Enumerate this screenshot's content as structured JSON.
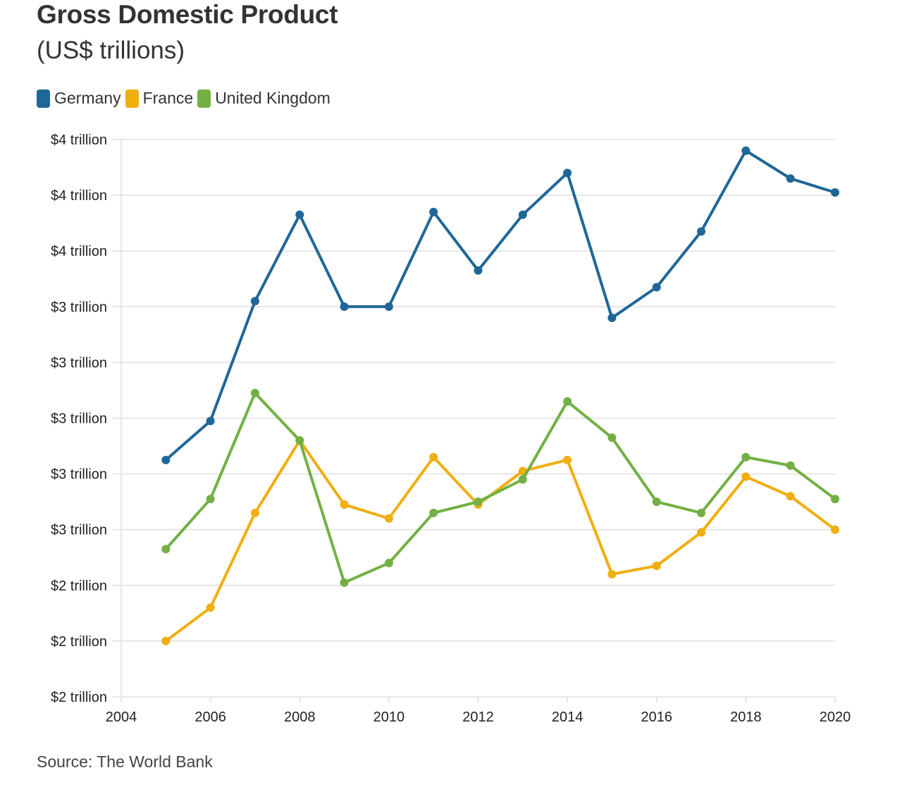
{
  "header": {
    "title": "Gross Domestic Product",
    "subtitle": "(US$ trillions)"
  },
  "legend": [
    {
      "label": "Germany",
      "color": "#1f6797"
    },
    {
      "label": "France",
      "color": "#f0ae0f"
    },
    {
      "label": "United Kingdom",
      "color": "#72b043"
    }
  ],
  "footer": {
    "source": "Source: The World Bank"
  },
  "chart_data": {
    "type": "line",
    "title": "Gross Domestic Product",
    "subtitle": "(US$ trillions)",
    "xlabel": "",
    "ylabel": "",
    "x": [
      2005,
      2006,
      2007,
      2008,
      2009,
      2010,
      2011,
      2012,
      2013,
      2014,
      2015,
      2016,
      2017,
      2018,
      2019,
      2020
    ],
    "xlim": [
      2004,
      2020
    ],
    "ylim": [
      2.0,
      4.0
    ],
    "x_ticks": [
      2004,
      2006,
      2008,
      2010,
      2012,
      2014,
      2016,
      2018,
      2020
    ],
    "x_tick_labels": [
      "2004",
      "2006",
      "2008",
      "2010",
      "2012",
      "2014",
      "2016",
      "2018",
      "2020"
    ],
    "y_ticks": [
      2.0,
      2.2,
      2.4,
      2.6,
      2.8,
      3.0,
      3.2,
      3.4,
      3.6,
      3.8,
      4.0
    ],
    "y_tick_labels": [
      "$2 trillion",
      "$2 trillion",
      "$2 trillion",
      "$3 trillion",
      "$3 trillion",
      "$3 trillion",
      "$3 trillion",
      "$3 trillion",
      "$4 trillion",
      "$4 trillion",
      "$4 trillion"
    ],
    "grid": true,
    "legend_position": "top-left",
    "source": "Source: The World Bank",
    "series": [
      {
        "name": "Germany",
        "color": "#1f6797",
        "values": [
          2.85,
          2.99,
          3.42,
          3.73,
          3.4,
          3.4,
          3.74,
          3.53,
          3.73,
          3.88,
          3.36,
          3.47,
          3.67,
          3.96,
          3.86,
          3.81
        ]
      },
      {
        "name": "France",
        "color": "#f0ae0f",
        "values": [
          2.2,
          2.32,
          2.66,
          2.92,
          2.69,
          2.64,
          2.86,
          2.69,
          2.81,
          2.85,
          2.44,
          2.47,
          2.59,
          2.79,
          2.72,
          2.6
        ]
      },
      {
        "name": "United Kingdom",
        "color": "#72b043",
        "values": [
          2.53,
          2.71,
          3.09,
          2.92,
          2.41,
          2.48,
          2.66,
          2.7,
          2.78,
          3.06,
          2.93,
          2.7,
          2.66,
          2.86,
          2.83,
          2.71
        ]
      }
    ]
  }
}
